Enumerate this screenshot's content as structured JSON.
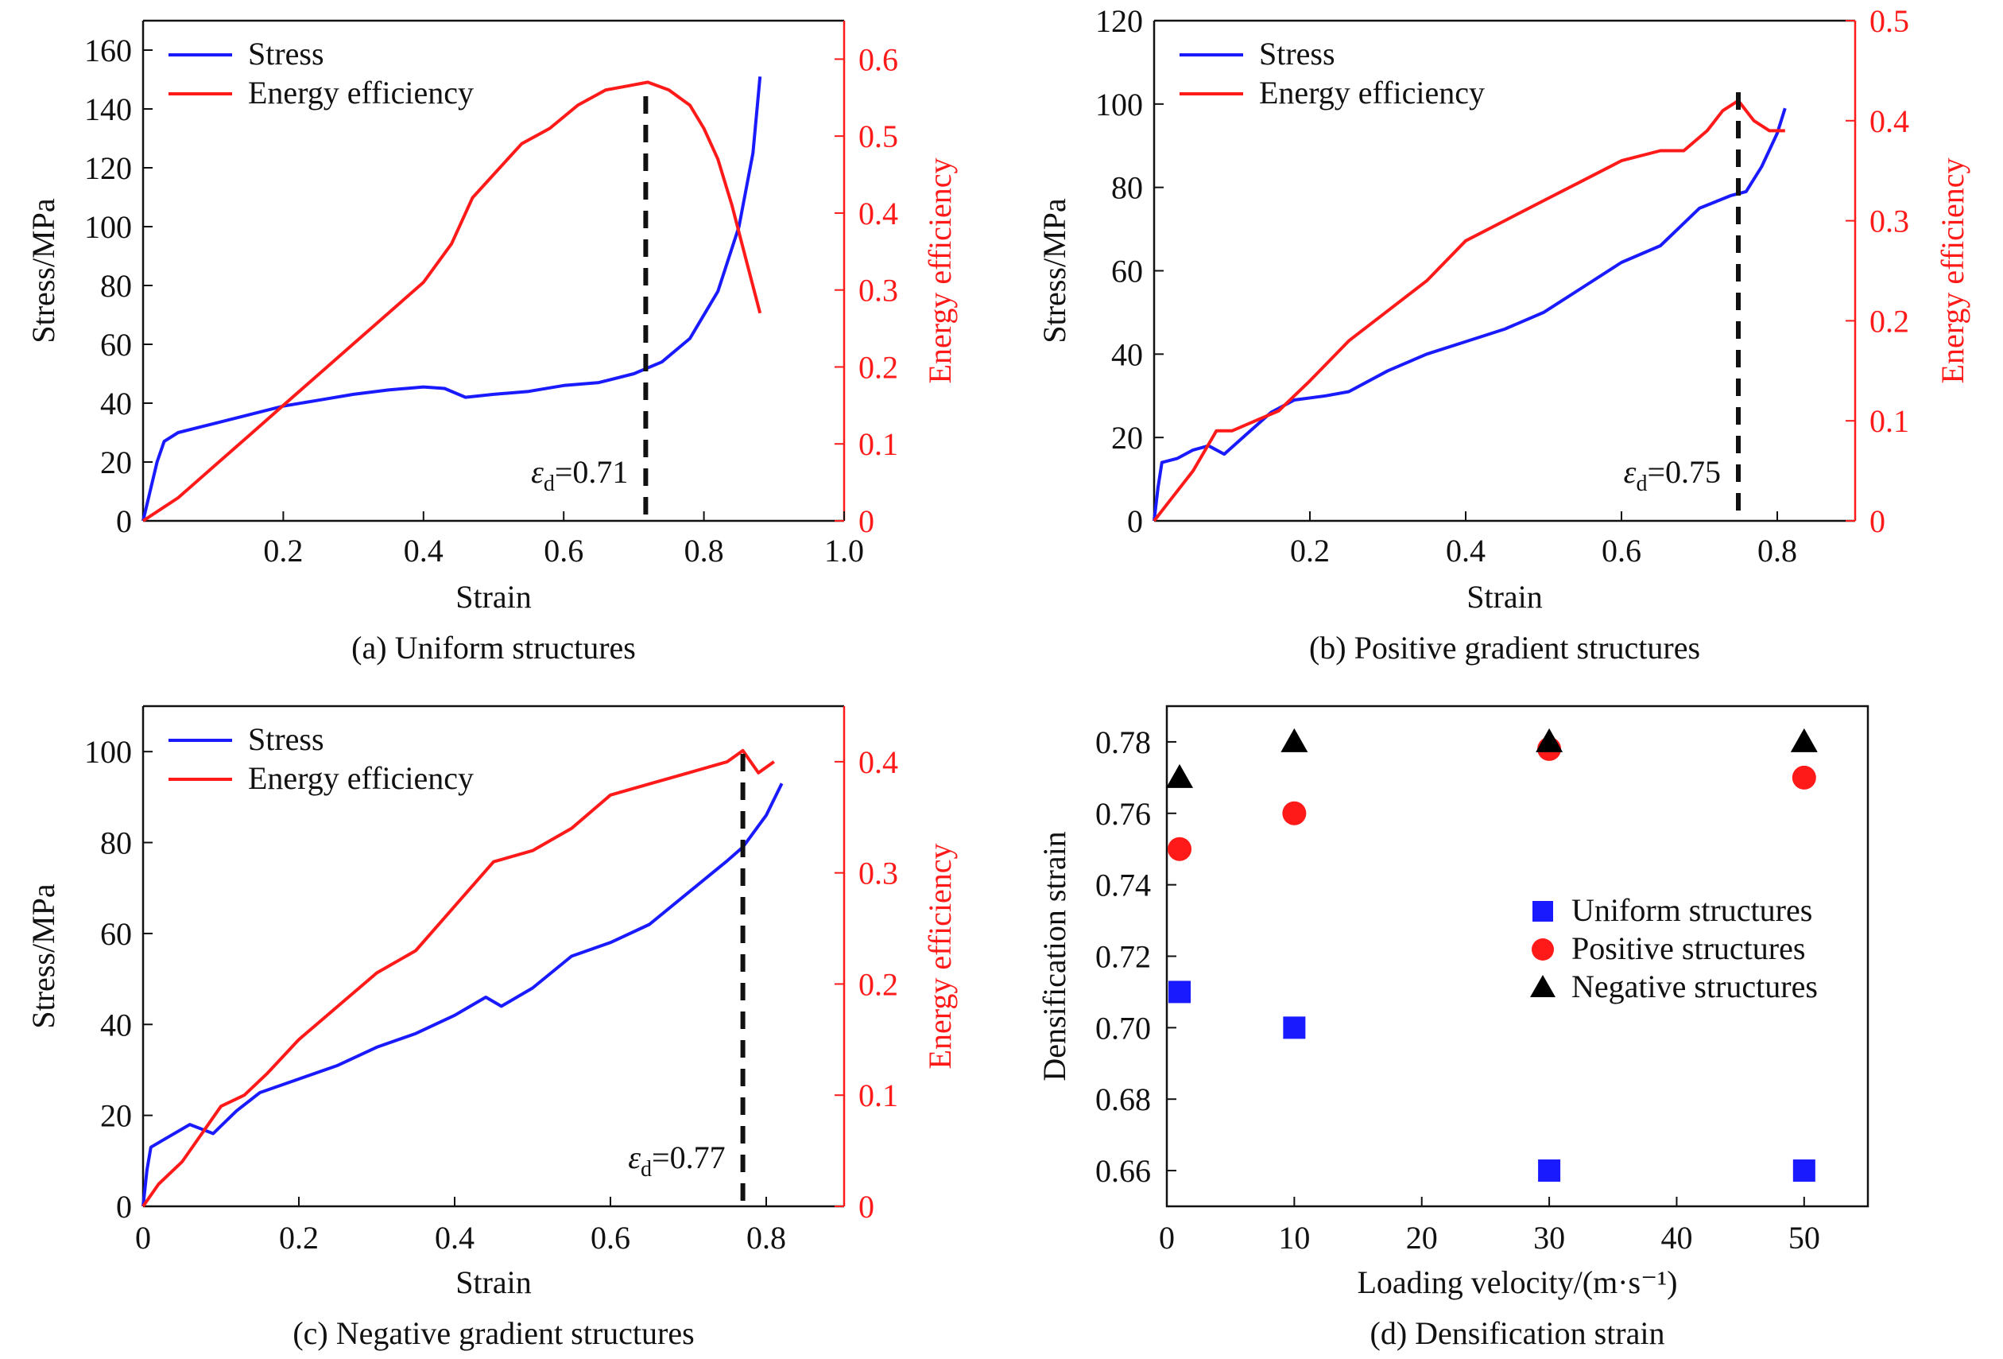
{
  "colors": {
    "stress": "#1a1aff",
    "efficiency": "#ff1a1a",
    "axis_right": "#ff1a1a"
  },
  "chart_data": [
    {
      "type": "line",
      "caption": "(a) Uniform structures",
      "xlabel": "Strain",
      "ylabel": "Stress/MPa",
      "y2label": "Energy efficiency",
      "xlim": [
        0,
        1.0
      ],
      "ylim": [
        0,
        170
      ],
      "y2lim": [
        0,
        0.65
      ],
      "xticks": [
        "0.2",
        "0.4",
        "0.6",
        "0.8",
        "1.0"
      ],
      "yticks": [
        "0",
        "20",
        "40",
        "60",
        "80",
        "100",
        "120",
        "140",
        "160"
      ],
      "y2ticks": [
        "0",
        "0.1",
        "0.2",
        "0.3",
        "0.4",
        "0.5",
        "0.6"
      ],
      "legend": [
        "Stress",
        "Energy efficiency"
      ],
      "densification_strain": 0.71,
      "annotation": "εd=0.71",
      "series": [
        {
          "name": "Stress",
          "axis": "left",
          "x": [
            0,
            0.02,
            0.03,
            0.05,
            0.1,
            0.15,
            0.2,
            0.25,
            0.3,
            0.35,
            0.4,
            0.43,
            0.46,
            0.5,
            0.55,
            0.6,
            0.65,
            0.7,
            0.74,
            0.78,
            0.82,
            0.85,
            0.87,
            0.88
          ],
          "y": [
            0,
            20,
            27,
            30,
            33,
            36,
            39,
            41,
            43,
            44.5,
            45.5,
            45,
            42,
            43,
            44,
            46,
            47,
            50,
            54,
            62,
            78,
            100,
            125,
            151
          ]
        },
        {
          "name": "Energy efficiency",
          "axis": "right",
          "x": [
            0,
            0.05,
            0.1,
            0.15,
            0.2,
            0.25,
            0.3,
            0.35,
            0.4,
            0.44,
            0.47,
            0.5,
            0.54,
            0.58,
            0.62,
            0.66,
            0.69,
            0.72,
            0.75,
            0.78,
            0.8,
            0.82,
            0.84,
            0.86,
            0.88
          ],
          "y": [
            0,
            0.03,
            0.07,
            0.11,
            0.15,
            0.19,
            0.23,
            0.27,
            0.31,
            0.36,
            0.42,
            0.45,
            0.49,
            0.51,
            0.54,
            0.56,
            0.565,
            0.57,
            0.56,
            0.54,
            0.51,
            0.47,
            0.41,
            0.34,
            0.27
          ]
        }
      ]
    },
    {
      "type": "line",
      "caption": "(b) Positive gradient structures",
      "xlabel": "Strain",
      "ylabel": "Stress/MPa",
      "y2label": "Energy efficiency",
      "xlim": [
        0,
        0.9
      ],
      "ylim": [
        0,
        120
      ],
      "y2lim": [
        0,
        0.5
      ],
      "xticks": [
        "0.2",
        "0.4",
        "0.6",
        "0.8"
      ],
      "yticks": [
        "0",
        "20",
        "40",
        "60",
        "80",
        "100",
        "120"
      ],
      "y2ticks": [
        "0",
        "0.1",
        "0.2",
        "0.3",
        "0.4",
        "0.5"
      ],
      "legend": [
        "Stress",
        "Energy efficiency"
      ],
      "densification_strain": 0.75,
      "annotation": "εd=0.75",
      "series": [
        {
          "name": "Stress",
          "axis": "left",
          "x": [
            0,
            0.005,
            0.01,
            0.03,
            0.05,
            0.07,
            0.09,
            0.12,
            0.15,
            0.18,
            0.22,
            0.25,
            0.3,
            0.35,
            0.4,
            0.45,
            0.5,
            0.55,
            0.6,
            0.65,
            0.7,
            0.74,
            0.76,
            0.78,
            0.8,
            0.81
          ],
          "y": [
            0,
            8,
            14,
            15,
            17,
            18,
            16,
            21,
            26,
            29,
            30,
            31,
            36,
            40,
            43,
            46,
            50,
            56,
            62,
            66,
            75,
            78,
            79,
            85,
            93,
            99
          ]
        },
        {
          "name": "Energy efficiency",
          "axis": "right",
          "x": [
            0,
            0.02,
            0.05,
            0.08,
            0.1,
            0.13,
            0.16,
            0.2,
            0.25,
            0.3,
            0.35,
            0.4,
            0.45,
            0.5,
            0.55,
            0.6,
            0.65,
            0.68,
            0.71,
            0.73,
            0.75,
            0.77,
            0.79,
            0.81
          ],
          "y": [
            0,
            0.02,
            0.05,
            0.09,
            0.09,
            0.1,
            0.11,
            0.14,
            0.18,
            0.21,
            0.24,
            0.28,
            0.3,
            0.32,
            0.34,
            0.36,
            0.37,
            0.37,
            0.39,
            0.41,
            0.42,
            0.4,
            0.39,
            0.39
          ]
        }
      ]
    },
    {
      "type": "line",
      "caption": "(c) Negative gradient structures",
      "xlabel": "Strain",
      "ylabel": "Stress/MPa",
      "y2label": "Energy efficiency",
      "xlim": [
        0,
        0.9
      ],
      "ylim": [
        0,
        110
      ],
      "y2lim": [
        0,
        0.45
      ],
      "xticks": [
        "0",
        "0.2",
        "0.4",
        "0.6",
        "0.8"
      ],
      "yticks": [
        "0",
        "20",
        "40",
        "60",
        "80",
        "100"
      ],
      "y2ticks": [
        "0",
        "0.1",
        "0.2",
        "0.3",
        "0.4"
      ],
      "legend": [
        "Stress",
        "Energy efficiency"
      ],
      "densification_strain": 0.77,
      "annotation": "εd=0.77",
      "series": [
        {
          "name": "Stress",
          "axis": "left",
          "x": [
            0,
            0.005,
            0.01,
            0.03,
            0.06,
            0.09,
            0.12,
            0.15,
            0.2,
            0.25,
            0.3,
            0.35,
            0.4,
            0.44,
            0.46,
            0.5,
            0.55,
            0.6,
            0.65,
            0.7,
            0.75,
            0.77,
            0.8,
            0.82
          ],
          "y": [
            0,
            8,
            13,
            15,
            18,
            16,
            21,
            25,
            28,
            31,
            35,
            38,
            42,
            46,
            44,
            48,
            55,
            58,
            62,
            69,
            76,
            79,
            86,
            93
          ]
        },
        {
          "name": "Energy efficiency",
          "axis": "right",
          "x": [
            0,
            0.02,
            0.05,
            0.08,
            0.1,
            0.13,
            0.16,
            0.2,
            0.25,
            0.3,
            0.35,
            0.4,
            0.45,
            0.5,
            0.55,
            0.6,
            0.65,
            0.7,
            0.75,
            0.77,
            0.79,
            0.81
          ],
          "y": [
            0,
            0.02,
            0.04,
            0.07,
            0.09,
            0.1,
            0.12,
            0.15,
            0.18,
            0.21,
            0.23,
            0.27,
            0.31,
            0.32,
            0.34,
            0.37,
            0.38,
            0.39,
            0.4,
            0.41,
            0.39,
            0.4
          ]
        }
      ]
    },
    {
      "type": "scatter",
      "caption": "(d) Densification strain",
      "xlabel": "Loading velocity/(m·s⁻¹)",
      "ylabel": "Densification strain",
      "xlim": [
        0,
        55
      ],
      "ylim": [
        0.65,
        0.79
      ],
      "xticks": [
        "0",
        "10",
        "20",
        "30",
        "40",
        "50"
      ],
      "yticks": [
        "0.66",
        "0.68",
        "0.70",
        "0.72",
        "0.74",
        "0.76",
        "0.78"
      ],
      "legend": [
        "Uniform structures",
        "Positive structures",
        "Negative structures"
      ],
      "series": [
        {
          "name": "Uniform structures",
          "marker": "square",
          "color": "#1a1aff",
          "x": [
            1,
            10,
            30,
            50
          ],
          "y": [
            0.71,
            0.7,
            0.66,
            0.66
          ]
        },
        {
          "name": "Positive structures",
          "marker": "circle",
          "color": "#ff1a1a",
          "x": [
            1,
            10,
            30,
            50
          ],
          "y": [
            0.75,
            0.76,
            0.778,
            0.77
          ]
        },
        {
          "name": "Negative structures",
          "marker": "triangle",
          "color": "#000000",
          "x": [
            1,
            10,
            30,
            50
          ],
          "y": [
            0.77,
            0.78,
            0.78,
            0.78
          ]
        }
      ]
    }
  ]
}
